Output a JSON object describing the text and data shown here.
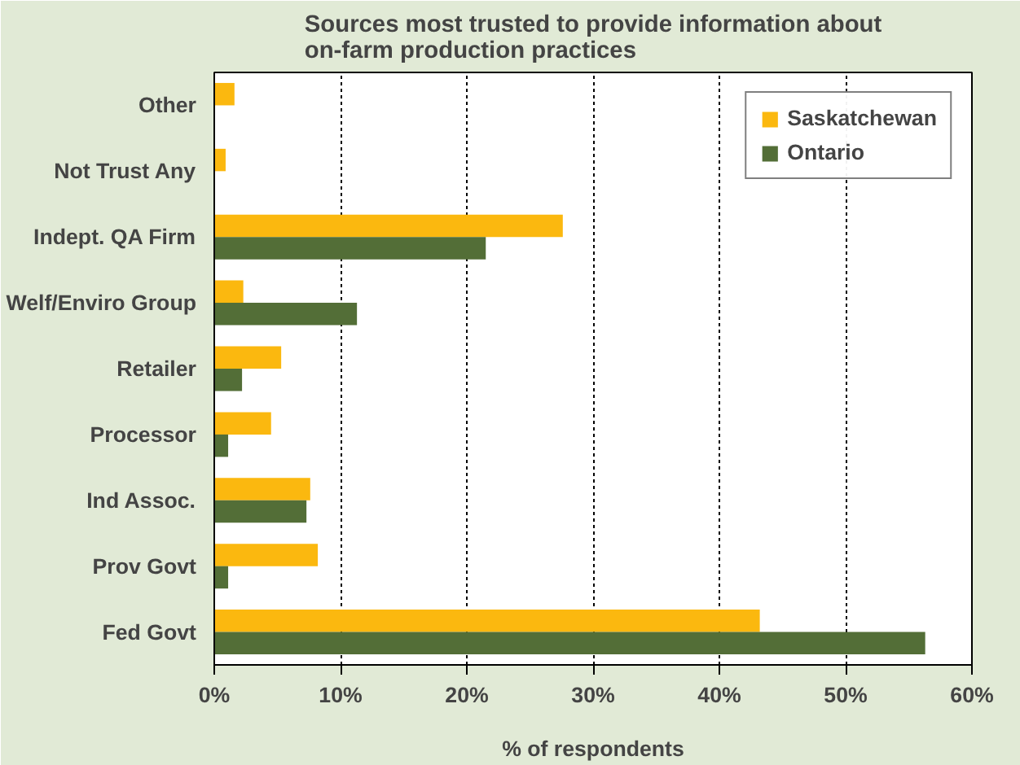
{
  "chart_data": {
    "type": "bar",
    "orientation": "horizontal",
    "title": "Sources most trusted to provide information about\non-farm production practices",
    "xlabel": "% of respondents",
    "categories": [
      "Other",
      "Not Trust Any",
      "Indept. QA Firm",
      "Welf/Enviro Group",
      "Retailer",
      "Processor",
      "Ind Assoc.",
      "Prov Govt",
      "Fed Govt"
    ],
    "series": [
      {
        "name": "Saskatchewan",
        "color": "#fbb80f",
        "values": [
          1.6,
          0.9,
          27.6,
          2.3,
          5.3,
          4.5,
          7.6,
          8.2,
          43.2
        ]
      },
      {
        "name": "Ontario",
        "color": "#536e37",
        "values": [
          0,
          0,
          21.5,
          11.3,
          2.2,
          1.1,
          7.3,
          1.1,
          56.3
        ]
      }
    ],
    "xlim": [
      0,
      60
    ],
    "xticks": [
      {
        "value": 0,
        "label": "0%"
      },
      {
        "value": 10,
        "label": "10%"
      },
      {
        "value": 20,
        "label": "20%"
      },
      {
        "value": 30,
        "label": "30%"
      },
      {
        "value": 40,
        "label": "40%"
      },
      {
        "value": 50,
        "label": "50%"
      },
      {
        "value": 60,
        "label": "60%"
      }
    ],
    "grid": "x",
    "legend": "top right"
  }
}
